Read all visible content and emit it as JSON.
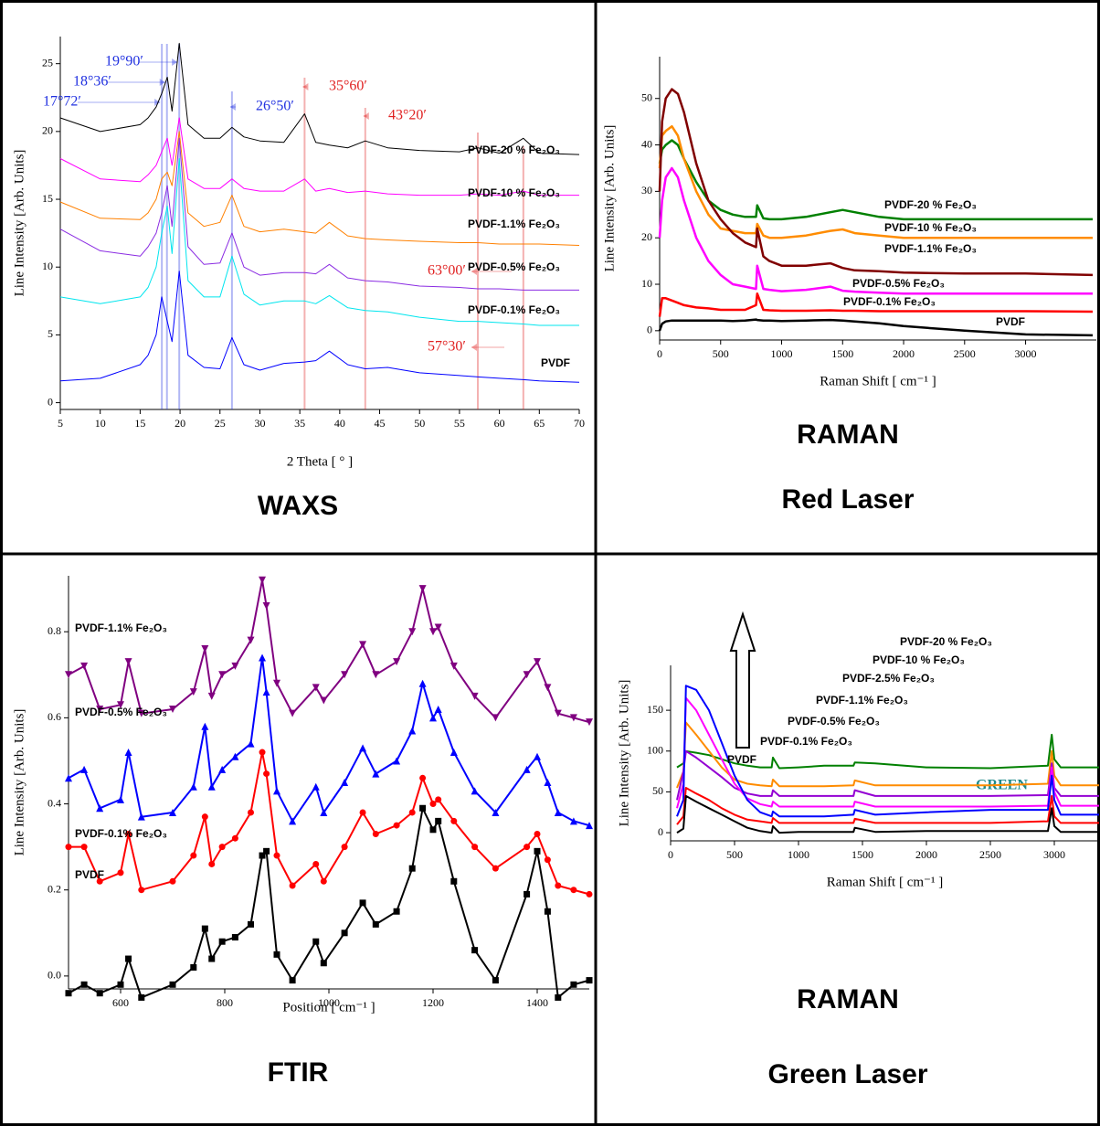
{
  "chart_data": [
    {
      "type": "line",
      "title": "WAXS",
      "x_label": "2 Theta [ ° ]",
      "y_label": "Line Intensity [Arb. Units]",
      "xlim": [
        5,
        70
      ],
      "xticks": [
        5,
        10,
        15,
        20,
        25,
        30,
        35,
        40,
        45,
        50,
        55,
        60,
        65,
        70
      ],
      "ylim": [
        -0.5,
        27
      ],
      "yticks": [
        0,
        5,
        10,
        15,
        20,
        25
      ],
      "x": [
        5,
        10,
        15,
        16,
        17,
        17.7,
        18.4,
        19,
        19.9,
        21,
        23,
        25,
        26.5,
        28,
        30,
        33,
        35.6,
        37,
        38.7,
        41,
        43.2,
        46,
        50,
        55,
        57.3,
        60,
        63,
        65,
        70
      ],
      "series": [
        {
          "name": "PVDF-20 % Fe₂O₃",
          "color": "#000000",
          "values": [
            21,
            20,
            20.5,
            21,
            21.8,
            22.8,
            24,
            21.5,
            26.5,
            20.5,
            19.5,
            19.5,
            20.3,
            19.6,
            19.3,
            19.2,
            21.3,
            19.2,
            19,
            18.8,
            19.3,
            18.8,
            18.6,
            18.5,
            18.8,
            18.4,
            19.5,
            18.4,
            18.3
          ]
        },
        {
          "name": "PVDF-10 % Fe₂O₃",
          "color": "#ff00ff",
          "values": [
            18,
            16.5,
            16.3,
            16.8,
            17.5,
            18.5,
            19.5,
            17.5,
            21,
            16.5,
            15.8,
            15.8,
            16.5,
            15.8,
            15.6,
            15.6,
            16.5,
            15.6,
            15.8,
            15.5,
            15.6,
            15.4,
            15.3,
            15.3,
            15.4,
            15.3,
            15.6,
            15.3,
            15.3
          ]
        },
        {
          "name": "PVDF-1.1% Fe₂O₃",
          "color": "#ff8000",
          "values": [
            14.8,
            13.6,
            13.5,
            14,
            15,
            16.5,
            17,
            16,
            20,
            14,
            13,
            13.3,
            15.3,
            13,
            12.6,
            12.8,
            12.6,
            12.5,
            13.3,
            12.3,
            12.1,
            12,
            11.9,
            11.8,
            11.8,
            11.7,
            11.7,
            11.7,
            11.6
          ]
        },
        {
          "name": "PVDF-0.5% Fe₂O₃",
          "color": "#8a2be2",
          "values": [
            12.8,
            11.2,
            10.8,
            11.5,
            12.5,
            14,
            16,
            13,
            19.5,
            11.5,
            10.2,
            10.3,
            12.5,
            10,
            9.4,
            9.6,
            9.6,
            9.5,
            10.2,
            9.2,
            9,
            8.9,
            8.6,
            8.5,
            8.4,
            8.4,
            8.3,
            8.3,
            8.3
          ]
        },
        {
          "name": "PVDF-0.1% Fe₂O₃",
          "color": "#00e5ee",
          "values": [
            7.8,
            7.3,
            7.8,
            8.5,
            10,
            12.5,
            14.5,
            11,
            18,
            9,
            7.8,
            7.8,
            10.8,
            8,
            7.2,
            7.5,
            7.5,
            7.3,
            7.9,
            7,
            6.8,
            6.7,
            6.3,
            6,
            6,
            5.9,
            5.8,
            5.7,
            5.7
          ]
        },
        {
          "name": "PVDF",
          "color": "#0000ff",
          "values": [
            1.6,
            1.8,
            2.8,
            3.5,
            5,
            7.8,
            6,
            4.5,
            9.7,
            3.5,
            2.6,
            2.5,
            4.8,
            2.8,
            2.4,
            2.9,
            3,
            3.1,
            3.8,
            2.8,
            2.5,
            2.6,
            2.2,
            2,
            1.9,
            1.8,
            1.7,
            1.6,
            1.5
          ]
        }
      ],
      "annotations": [
        {
          "text": "19°90′",
          "x": 19.9,
          "color": "#2030e0"
        },
        {
          "text": "18°36′",
          "x": 18.36,
          "color": "#2030e0"
        },
        {
          "text": "17°72′",
          "x": 17.72,
          "color": "#2030e0"
        },
        {
          "text": "26°50′",
          "x": 26.5,
          "color": "#2030e0"
        },
        {
          "text": "35°60′",
          "x": 35.6,
          "color": "#e02020"
        },
        {
          "text": "43°20′",
          "x": 43.2,
          "color": "#e02020"
        },
        {
          "text": "63°00′",
          "x": 63,
          "color": "#e02020"
        },
        {
          "text": "57°30′",
          "x": 57.3,
          "color": "#e02020"
        }
      ]
    },
    {
      "type": "line",
      "title": "RAMAN",
      "subtitle": "Red Laser",
      "x_label": "Raman Shift [ cm⁻¹ ]",
      "y_label": "Line Intensity [Arb. Units]",
      "xlim": [
        0,
        3580
      ],
      "xticks": [
        0,
        500,
        1000,
        1500,
        2000,
        2500,
        3000
      ],
      "ylim": [
        -2,
        59
      ],
      "yticks": [
        0,
        10,
        20,
        30,
        40,
        50
      ],
      "x": [
        0,
        20,
        50,
        100,
        150,
        200,
        300,
        400,
        500,
        600,
        700,
        790,
        800,
        850,
        900,
        1000,
        1200,
        1400,
        1500,
        1600,
        1800,
        2000,
        2500,
        3000,
        3550
      ],
      "series": [
        {
          "name": "PVDF-20 % Fe₂O₃",
          "color": "#008000",
          "values": [
            36,
            39,
            40,
            41,
            40,
            37,
            32,
            28,
            26,
            25,
            24.5,
            24.5,
            27,
            24.2,
            24,
            24,
            24.5,
            25.5,
            26,
            25.5,
            24.5,
            24,
            24,
            24,
            24
          ]
        },
        {
          "name": "PVDF-10 % Fe₂O₃",
          "color": "#ff8c00",
          "values": [
            35,
            42,
            43,
            44,
            42,
            37,
            30,
            25,
            22,
            21.5,
            21,
            21,
            23,
            20.5,
            20,
            20,
            20.5,
            21.5,
            21.8,
            21,
            20.5,
            20,
            20,
            20,
            20
          ]
        },
        {
          "name": "PVDF-1.1% Fe₂O₃",
          "color": "#800000",
          "values": [
            30,
            45,
            50,
            52,
            51,
            47,
            36,
            28,
            24,
            21,
            19,
            18,
            22,
            16,
            15,
            14,
            14,
            14.5,
            13.5,
            13,
            12.8,
            12.5,
            12.3,
            12.3,
            12
          ]
        },
        {
          "name": "PVDF-0.5% Fe₂O₃",
          "color": "#ff00ff",
          "values": [
            20,
            28,
            33,
            35,
            33,
            28,
            20,
            15,
            12,
            10,
            9.5,
            9,
            14,
            9,
            8.8,
            8.5,
            8.8,
            9.5,
            8.6,
            8.4,
            8.2,
            8,
            8,
            8,
            8
          ]
        },
        {
          "name": "PVDF-0.1% Fe₂O₃",
          "color": "#ff0000",
          "values": [
            3,
            7,
            7,
            6.5,
            6,
            5.5,
            5,
            4.8,
            4.5,
            4.5,
            4.5,
            5.5,
            8,
            4.5,
            4.4,
            4.3,
            4.3,
            4.4,
            4.3,
            4.3,
            4.2,
            4.2,
            4.2,
            4.2,
            4.1
          ]
        },
        {
          "name": "PVDF",
          "color": "#000000",
          "values": [
            0,
            1.5,
            2,
            2.2,
            2.2,
            2.2,
            2.2,
            2.2,
            2.2,
            2.1,
            2.2,
            2.4,
            2.3,
            2.2,
            2.2,
            2.1,
            2.2,
            2.3,
            2.2,
            2,
            1.6,
            1,
            0,
            -0.8,
            -1
          ]
        }
      ]
    },
    {
      "type": "line",
      "title": "FTIR",
      "x_label": "Position [ cm⁻¹ ]",
      "y_label": "Line Intensity [Arb. Units]",
      "xlim": [
        500,
        1500
      ],
      "xticks": [
        600,
        800,
        1000,
        1200,
        1400
      ],
      "ylim": [
        -0.03,
        0.93
      ],
      "yticks": [
        {
          "value": 0,
          "label": "0.0"
        },
        0.2,
        0.4,
        0.6,
        0.8
      ],
      "x": [
        500,
        530,
        560,
        600,
        615,
        640,
        700,
        740,
        762,
        775,
        795,
        820,
        850,
        872,
        880,
        900,
        930,
        975,
        990,
        1030,
        1065,
        1090,
        1130,
        1160,
        1180,
        1200,
        1210,
        1240,
        1280,
        1320,
        1380,
        1400,
        1420,
        1440,
        1470,
        1500
      ],
      "series": [
        {
          "name": "PVDF-1.1% Fe₂O₃",
          "color": "#800080",
          "marker": "triangle-down",
          "values": [
            0.7,
            0.72,
            0.62,
            0.63,
            0.73,
            0.61,
            0.62,
            0.66,
            0.76,
            0.65,
            0.7,
            0.72,
            0.78,
            0.92,
            0.86,
            0.68,
            0.61,
            0.67,
            0.64,
            0.7,
            0.77,
            0.7,
            0.73,
            0.8,
            0.9,
            0.8,
            0.81,
            0.72,
            0.65,
            0.6,
            0.7,
            0.73,
            0.67,
            0.61,
            0.6,
            0.59
          ]
        },
        {
          "name": "PVDF-0.5% Fe₂O₃",
          "color": "#0000ff",
          "marker": "triangle-up",
          "values": [
            0.46,
            0.48,
            0.39,
            0.41,
            0.52,
            0.37,
            0.38,
            0.44,
            0.58,
            0.44,
            0.48,
            0.51,
            0.54,
            0.74,
            0.66,
            0.43,
            0.36,
            0.44,
            0.38,
            0.45,
            0.53,
            0.47,
            0.5,
            0.57,
            0.68,
            0.6,
            0.62,
            0.52,
            0.43,
            0.38,
            0.48,
            0.51,
            0.45,
            0.38,
            0.36,
            0.35
          ]
        },
        {
          "name": "PVDF-0.1% Fe₂O₃",
          "color": "#ff0000",
          "marker": "circle",
          "values": [
            0.3,
            0.3,
            0.22,
            0.24,
            0.33,
            0.2,
            0.22,
            0.28,
            0.37,
            0.26,
            0.3,
            0.32,
            0.38,
            0.52,
            0.47,
            0.28,
            0.21,
            0.26,
            0.22,
            0.3,
            0.38,
            0.33,
            0.35,
            0.38,
            0.46,
            0.4,
            0.41,
            0.36,
            0.3,
            0.25,
            0.3,
            0.33,
            0.27,
            0.21,
            0.2,
            0.19
          ]
        },
        {
          "name": "PVDF",
          "color": "#000000",
          "marker": "square",
          "values": [
            -0.04,
            -0.02,
            -0.04,
            -0.02,
            0.04,
            -0.05,
            -0.02,
            0.02,
            0.11,
            0.04,
            0.08,
            0.09,
            0.12,
            0.28,
            0.29,
            0.05,
            -0.01,
            0.08,
            0.03,
            0.1,
            0.17,
            0.12,
            0.15,
            0.25,
            0.39,
            0.34,
            0.36,
            0.22,
            0.06,
            -0.01,
            0.19,
            0.29,
            0.15,
            -0.05,
            -0.02,
            -0.01
          ]
        }
      ]
    },
    {
      "type": "line",
      "title": "RAMAN",
      "subtitle": "Green Laser",
      "x_label": "Raman Shift [ cm⁻¹ ]",
      "y_label": "Line Intensity [Arb. Units]",
      "xlim": [
        0,
        3350
      ],
      "xticks": [
        0,
        500,
        1000,
        1500,
        2000,
        2500,
        3000
      ],
      "ylim": [
        -10,
        205
      ],
      "yticks": [
        0,
        50,
        100,
        150
      ],
      "x": [
        50,
        100,
        120,
        200,
        300,
        400,
        500,
        600,
        700,
        790,
        800,
        850,
        1000,
        1200,
        1430,
        1440,
        1600,
        2000,
        2500,
        2950,
        2980,
        3000,
        3050,
        3350
      ],
      "series": [
        {
          "name": "PVDF-20 % Fe₂O₃",
          "color": "#008000",
          "values": [
            80,
            85,
            100,
            98,
            95,
            90,
            85,
            82,
            80,
            80,
            92,
            79,
            80,
            82,
            82,
            86,
            85,
            80,
            79,
            82,
            120,
            90,
            80,
            80
          ]
        },
        {
          "name": "PVDF-10 % Fe₂O₃",
          "color": "#ff8c00",
          "values": [
            55,
            75,
            135,
            120,
            100,
            80,
            65,
            60,
            58,
            57,
            65,
            57,
            57,
            57,
            58,
            64,
            58,
            58,
            58,
            60,
            100,
            70,
            58,
            58
          ]
        },
        {
          "name": "PVDF-2.5% Fe₂O₃",
          "color": "#9400d3",
          "values": [
            40,
            75,
            100,
            92,
            80,
            68,
            55,
            48,
            45,
            45,
            52,
            45,
            45,
            45,
            45,
            52,
            45,
            45,
            45,
            46,
            85,
            55,
            45,
            45
          ]
        },
        {
          "name": "PVDF-1.1% Fe₂O₃",
          "color": "#ff00ff",
          "values": [
            30,
            60,
            165,
            150,
            120,
            90,
            60,
            42,
            35,
            32,
            38,
            32,
            32,
            32,
            32,
            38,
            32,
            32,
            32,
            33,
            80,
            50,
            33,
            33
          ]
        },
        {
          "name": "PVDF-0.5% Fe₂O₃",
          "color": "#0000ff",
          "values": [
            20,
            40,
            180,
            175,
            150,
            110,
            70,
            40,
            25,
            20,
            26,
            20,
            20,
            20,
            22,
            28,
            22,
            25,
            28,
            28,
            70,
            40,
            22,
            22
          ]
        },
        {
          "name": "PVDF-0.1% Fe₂O₃",
          "color": "#ff0000",
          "values": [
            10,
            20,
            55,
            48,
            40,
            30,
            22,
            16,
            14,
            12,
            18,
            12,
            12,
            12,
            12,
            17,
            12,
            12,
            12,
            14,
            45,
            20,
            12,
            12
          ]
        },
        {
          "name": "PVDF",
          "color": "#000000",
          "values": [
            0,
            5,
            45,
            38,
            30,
            22,
            14,
            6,
            2,
            0,
            8,
            0,
            1,
            1,
            1,
            6,
            1,
            2,
            2,
            2,
            30,
            8,
            1,
            1
          ]
        }
      ],
      "annotations": [
        {
          "text": "GREEN",
          "color": "#1f8a8a"
        }
      ]
    }
  ]
}
